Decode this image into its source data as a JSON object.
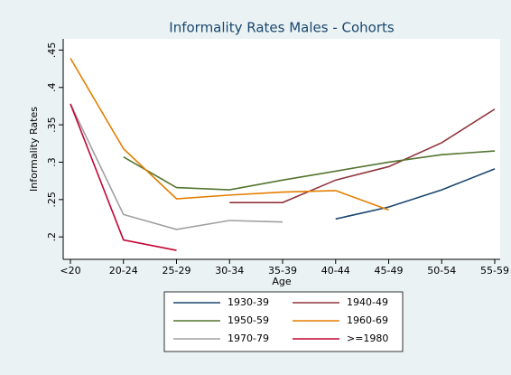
{
  "chart_data": {
    "type": "line",
    "title": "Informality Rates Males - Cohorts",
    "x_label": "Age",
    "y_label": "Informality Rates",
    "categories": [
      "<20",
      "20-24",
      "25-29",
      "30-34",
      "35-39",
      "40-44",
      "45-49",
      "50-54",
      "55-59"
    ],
    "ylim": [
      0.17,
      0.465
    ],
    "yticks": [
      {
        "value": 0.2,
        "label": ".2"
      },
      {
        "value": 0.25,
        "label": ".25"
      },
      {
        "value": 0.3,
        "label": ".3"
      },
      {
        "value": 0.35,
        "label": ".35"
      },
      {
        "value": 0.4,
        "label": ".4"
      },
      {
        "value": 0.45,
        "label": ".45"
      }
    ],
    "series": [
      {
        "name": "1930-39",
        "color": "#1a476f",
        "values": [
          null,
          null,
          null,
          null,
          null,
          0.224,
          0.24,
          0.263,
          0.291
        ]
      },
      {
        "name": "1940-49",
        "color": "#90353b",
        "values": [
          null,
          null,
          null,
          0.246,
          0.246,
          0.276,
          0.294,
          0.326,
          0.371
        ]
      },
      {
        "name": "1950-59",
        "color": "#55752f",
        "values": [
          null,
          0.307,
          0.266,
          0.263,
          0.276,
          0.288,
          0.3,
          0.31,
          0.315
        ]
      },
      {
        "name": "1960-69",
        "color": "#e37e00",
        "values": [
          0.439,
          0.318,
          0.251,
          0.256,
          0.26,
          0.262,
          0.236,
          null,
          null
        ]
      },
      {
        "name": "1970-79",
        "color": "#a0a0a0",
        "values": [
          0.378,
          0.23,
          0.21,
          0.222,
          0.22,
          null,
          null,
          null,
          null
        ]
      },
      {
        "name": ">=1980",
        "color": "#c10534",
        "values": [
          0.378,
          0.196,
          0.182,
          null,
          null,
          null,
          null,
          null,
          null
        ]
      }
    ],
    "legend": "bottom"
  }
}
